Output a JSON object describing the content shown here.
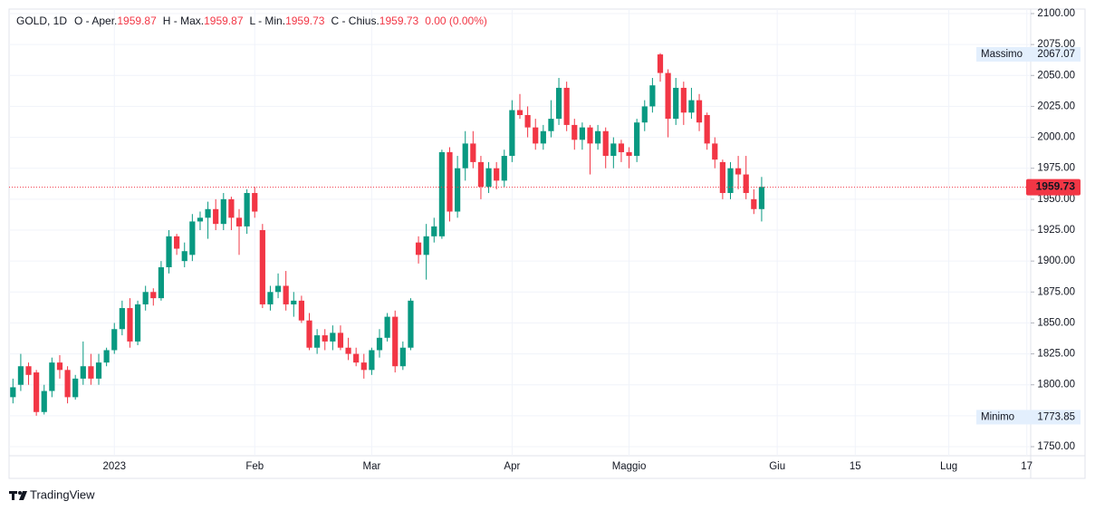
{
  "chart_data": {
    "type": "candlestick",
    "legend": {
      "symbol": "GOLD, 1D",
      "items": [
        {
          "key": "O - Aper.",
          "value": 1959.87
        },
        {
          "key": "H - Max.",
          "value": 1959.87
        },
        {
          "key": "L - Min.",
          "value": 1959.73
        },
        {
          "key": "C - Chius.",
          "value": 1959.73
        }
      ],
      "change": "0.00 (0.00%)"
    },
    "last_price": 1959.73,
    "high_marker": {
      "label": "Massimo",
      "value": 2067.07
    },
    "low_marker": {
      "label": "Minimo",
      "value": 1773.85
    },
    "brand": "TradingView",
    "up_color": "#089981",
    "down_color": "#f23645",
    "grid": true,
    "ylim": [
      1750,
      2100
    ],
    "yticks": [
      {
        "value": 1750,
        "label": "1750.00"
      },
      {
        "value": 1775,
        "label": "1775.00"
      },
      {
        "value": 1800,
        "label": "1800.00"
      },
      {
        "value": 1825,
        "label": "1825.00"
      },
      {
        "value": 1850,
        "label": "1850.00"
      },
      {
        "value": 1875,
        "label": "1875.00"
      },
      {
        "value": 1900,
        "label": "1900.00"
      },
      {
        "value": 1925,
        "label": "1925.00"
      },
      {
        "value": 1950,
        "label": "1950.00"
      },
      {
        "value": 1975,
        "label": "1975.00"
      },
      {
        "value": 2000,
        "label": "2000.00"
      },
      {
        "value": 2025,
        "label": "2025.00"
      },
      {
        "value": 2050,
        "label": "2050.00"
      },
      {
        "value": 2075,
        "label": "2075.00"
      },
      {
        "value": 2100,
        "label": "2100.00"
      }
    ],
    "categories": [
      null,
      null,
      null,
      null,
      null,
      null,
      null,
      null,
      null,
      null,
      null,
      null,
      null,
      "2023",
      null,
      null,
      null,
      null,
      null,
      null,
      null,
      null,
      null,
      null,
      null,
      null,
      null,
      null,
      null,
      null,
      null,
      "Feb",
      null,
      null,
      null,
      null,
      null,
      null,
      null,
      null,
      null,
      null,
      null,
      null,
      null,
      null,
      "Mar",
      null,
      null,
      null,
      null,
      null,
      null,
      null,
      null,
      null,
      null,
      null,
      null,
      null,
      null,
      null,
      null,
      null,
      "Apr",
      null,
      null,
      null,
      null,
      null,
      null,
      null,
      null,
      null,
      null,
      null,
      null,
      null,
      null,
      "Maggio",
      null,
      null,
      null,
      null,
      null,
      null,
      null,
      null,
      null,
      null,
      null,
      null,
      null,
      null,
      null,
      null,
      null,
      null,
      "Giu",
      null,
      null,
      null,
      null,
      null,
      null,
      null,
      null,
      null,
      "15",
      null,
      null,
      null,
      null,
      null,
      null,
      null,
      null,
      null,
      null,
      null,
      "Lug",
      null,
      null,
      null,
      null,
      null,
      null,
      null,
      null,
      null,
      "17"
    ],
    "open": [
      1790,
      1800,
      1815,
      1810,
      1778,
      1795,
      1818,
      1812,
      1790,
      1805,
      1815,
      1805,
      1818,
      1828,
      1845,
      1862,
      1835,
      1865,
      1875,
      1870,
      1895,
      1920,
      1900,
      1905,
      1932,
      1935,
      1942,
      1930,
      1950,
      1935,
      1928,
      1955,
      1925,
      1865,
      1875,
      1880,
      1865,
      1868,
      1852,
      1830,
      1840,
      1835,
      1842,
      1830,
      1825,
      1818,
      1812,
      1828,
      1838,
      1855,
      1815,
      1830,
      1915,
      1905,
      1920,
      1920,
      1988,
      1940,
      1975,
      1995,
      1980,
      1960,
      1975,
      1965,
      1985,
      2022,
      2018,
      2008,
      1995,
      2005,
      2015,
      2040,
      2010,
      1998,
      2008,
      1995,
      2005,
      1985,
      1995,
      1988,
      1985,
      2012,
      2025,
      2067,
      2052,
      2015,
      2040,
      2020,
      2030,
      2018,
      1995,
      1980,
      1955,
      1975,
      1970,
      1950,
      1942,
      null,
      null,
      null,
      null,
      null,
      null,
      null,
      null,
      null,
      null,
      null,
      null,
      null,
      null,
      null,
      null,
      null,
      null,
      null,
      null,
      null,
      null,
      null,
      null,
      null,
      null,
      null,
      null,
      null,
      null,
      null,
      null,
      null,
      null
    ],
    "high": [
      1805,
      1825,
      1818,
      1812,
      1800,
      1822,
      1824,
      1815,
      1808,
      1835,
      1825,
      1825,
      1830,
      1850,
      1868,
      1870,
      1868,
      1880,
      1878,
      1900,
      1925,
      1922,
      1915,
      1938,
      1940,
      1948,
      1950,
      1955,
      1952,
      1942,
      1958,
      1960,
      1930,
      1880,
      1890,
      1892,
      1875,
      1872,
      1858,
      1845,
      1845,
      1848,
      1848,
      1838,
      1830,
      1825,
      1830,
      1845,
      1858,
      1860,
      1835,
      1870,
      1920,
      1930,
      1935,
      1990,
      1992,
      1985,
      2005,
      2005,
      1985,
      1980,
      1980,
      1990,
      2030,
      2035,
      2025,
      2015,
      2010,
      2030,
      2048,
      2045,
      2015,
      2012,
      2010,
      2010,
      2008,
      2000,
      1998,
      1992,
      2015,
      2030,
      2048,
      2068,
      2055,
      2048,
      2045,
      2040,
      2035,
      2020,
      2000,
      1982,
      1980,
      1985,
      1985,
      1958,
      1968,
      null,
      null,
      null,
      null,
      null,
      null,
      null,
      null,
      null,
      null,
      null,
      null,
      null,
      null,
      null,
      null,
      null,
      null,
      null,
      null,
      null,
      null,
      null,
      null,
      null,
      null,
      null,
      null,
      null,
      null,
      null,
      null,
      null,
      null
    ],
    "low": [
      1785,
      1795,
      1800,
      1775,
      1776,
      1790,
      1805,
      1785,
      1788,
      1800,
      1800,
      1800,
      1815,
      1825,
      1840,
      1830,
      1832,
      1860,
      1864,
      1868,
      1890,
      1905,
      1895,
      1900,
      1925,
      1918,
      1925,
      1925,
      1925,
      1905,
      1922,
      1935,
      1862,
      1860,
      1870,
      1860,
      1855,
      1850,
      1828,
      1825,
      1828,
      1828,
      1828,
      1820,
      1815,
      1805,
      1808,
      1822,
      1835,
      1810,
      1812,
      1828,
      1898,
      1885,
      1915,
      1918,
      1932,
      1935,
      1965,
      1975,
      1950,
      1955,
      1958,
      1960,
      1980,
      2015,
      2000,
      1990,
      1990,
      2000,
      2010,
      2005,
      1990,
      1990,
      1970,
      1990,
      1975,
      1975,
      1980,
      1975,
      1980,
      2005,
      2020,
      2045,
      2000,
      2010,
      2010,
      2015,
      2005,
      1990,
      1975,
      1950,
      1950,
      1958,
      1950,
      1938,
      1932,
      null,
      null,
      null,
      null,
      null,
      null,
      null,
      null,
      null,
      null,
      null,
      null,
      null,
      null,
      null,
      null,
      null,
      null,
      null,
      null,
      null,
      null,
      null,
      null,
      null,
      null,
      null,
      null,
      null,
      null,
      null,
      null,
      null,
      null
    ],
    "close": [
      1798,
      1815,
      1808,
      1778,
      1795,
      1818,
      1812,
      1790,
      1805,
      1815,
      1805,
      1818,
      1828,
      1845,
      1862,
      1835,
      1865,
      1875,
      1870,
      1895,
      1920,
      1910,
      1908,
      1932,
      1935,
      1942,
      1930,
      1950,
      1935,
      1928,
      1955,
      1940,
      1865,
      1875,
      1880,
      1865,
      1868,
      1852,
      1830,
      1840,
      1835,
      1842,
      1830,
      1825,
      1818,
      1812,
      1828,
      1838,
      1855,
      1815,
      1830,
      1868,
      1905,
      1920,
      1928,
      1988,
      1940,
      1975,
      1995,
      1980,
      1960,
      1975,
      1965,
      1985,
      2022,
      2018,
      2008,
      1995,
      2005,
      2015,
      2040,
      2010,
      1998,
      2008,
      1995,
      2005,
      1985,
      1995,
      1988,
      1985,
      2012,
      2025,
      2042,
      2052,
      2015,
      2040,
      2020,
      2030,
      2012,
      1995,
      1982,
      1955,
      1975,
      1970,
      1955,
      1942,
      1960,
      null,
      null,
      null,
      null,
      null,
      null,
      null,
      null,
      null,
      null,
      null,
      null,
      null,
      null,
      null,
      null,
      null,
      null,
      null,
      null,
      null,
      null,
      null,
      null,
      null,
      null,
      null,
      null,
      null,
      null,
      null,
      null,
      null,
      null
    ]
  }
}
